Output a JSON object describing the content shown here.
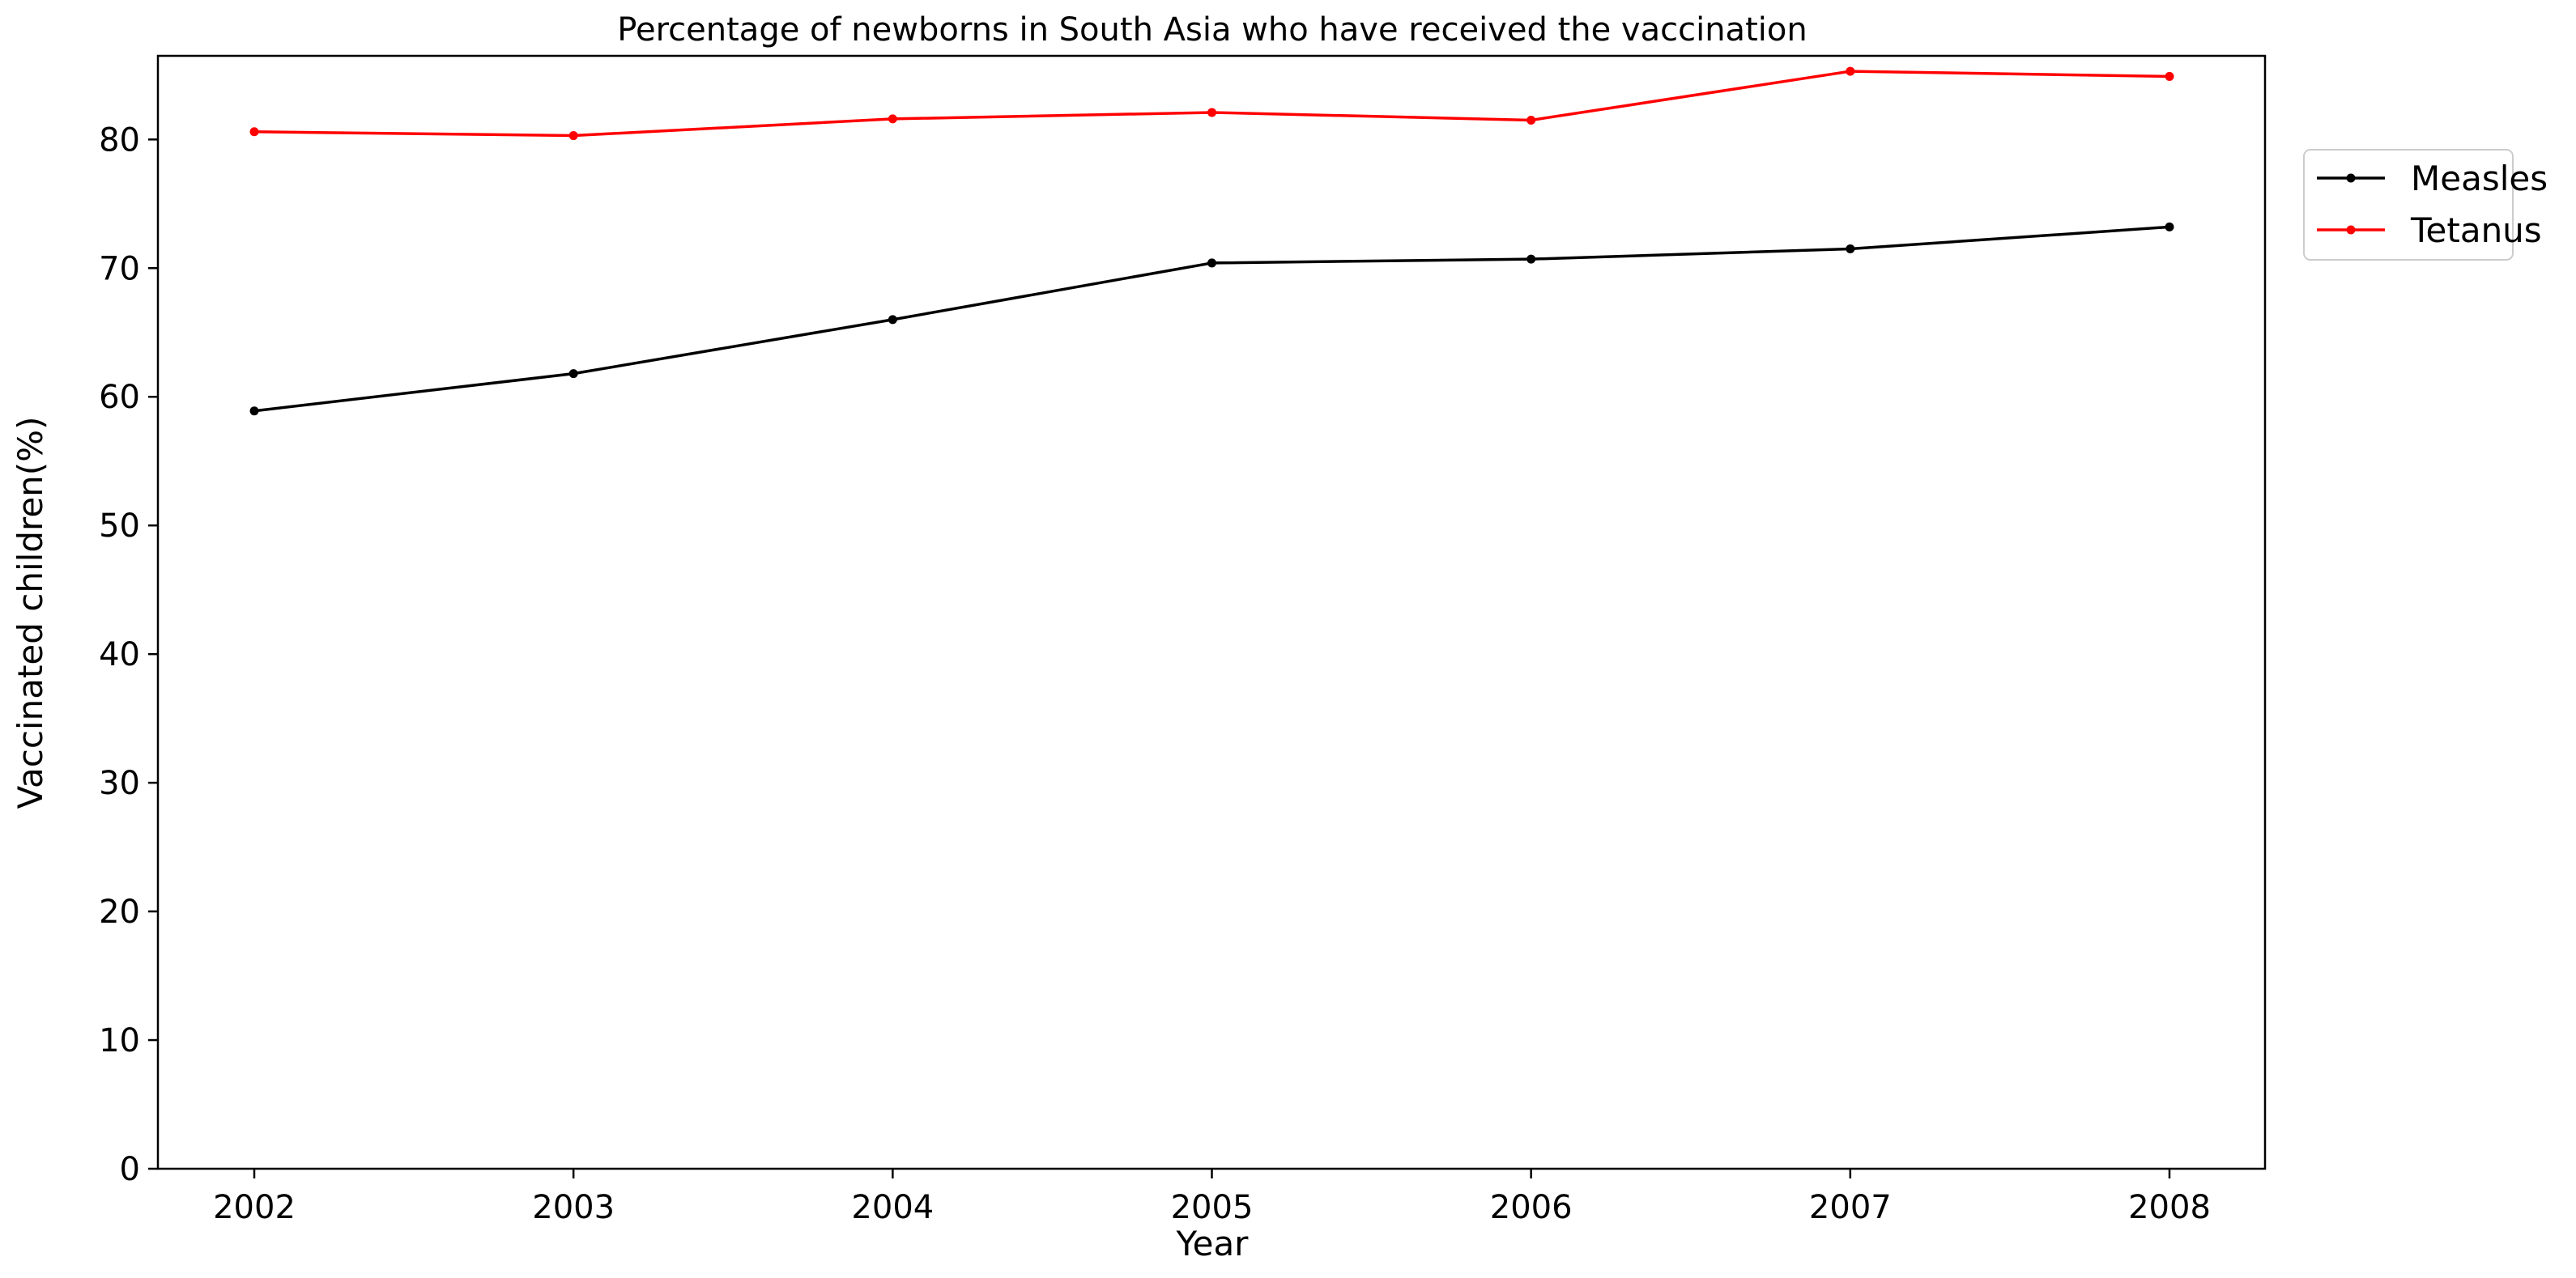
{
  "chart_data": {
    "type": "line",
    "title": "Percentage of newborns in South Asia who have received the vaccination",
    "xlabel": "Year",
    "ylabel": "Vaccinated children(%)",
    "x": [
      "2002",
      "2003",
      "2004",
      "2005",
      "2006",
      "2007",
      "2008"
    ],
    "series": [
      {
        "name": "Measles",
        "color": "#000000",
        "values": [
          58.9,
          61.8,
          66.0,
          70.4,
          70.7,
          71.5,
          73.2
        ]
      },
      {
        "name": "Tetanus",
        "color": "#ff0000",
        "values": [
          80.6,
          80.3,
          81.6,
          82.1,
          81.5,
          85.3,
          84.9
        ]
      }
    ],
    "ylim": [
      0,
      86.5
    ],
    "yticks": [
      "0",
      "10",
      "20",
      "30",
      "40",
      "50",
      "60",
      "70",
      "80"
    ],
    "grid": false,
    "legend_position": "outside-top-right"
  }
}
